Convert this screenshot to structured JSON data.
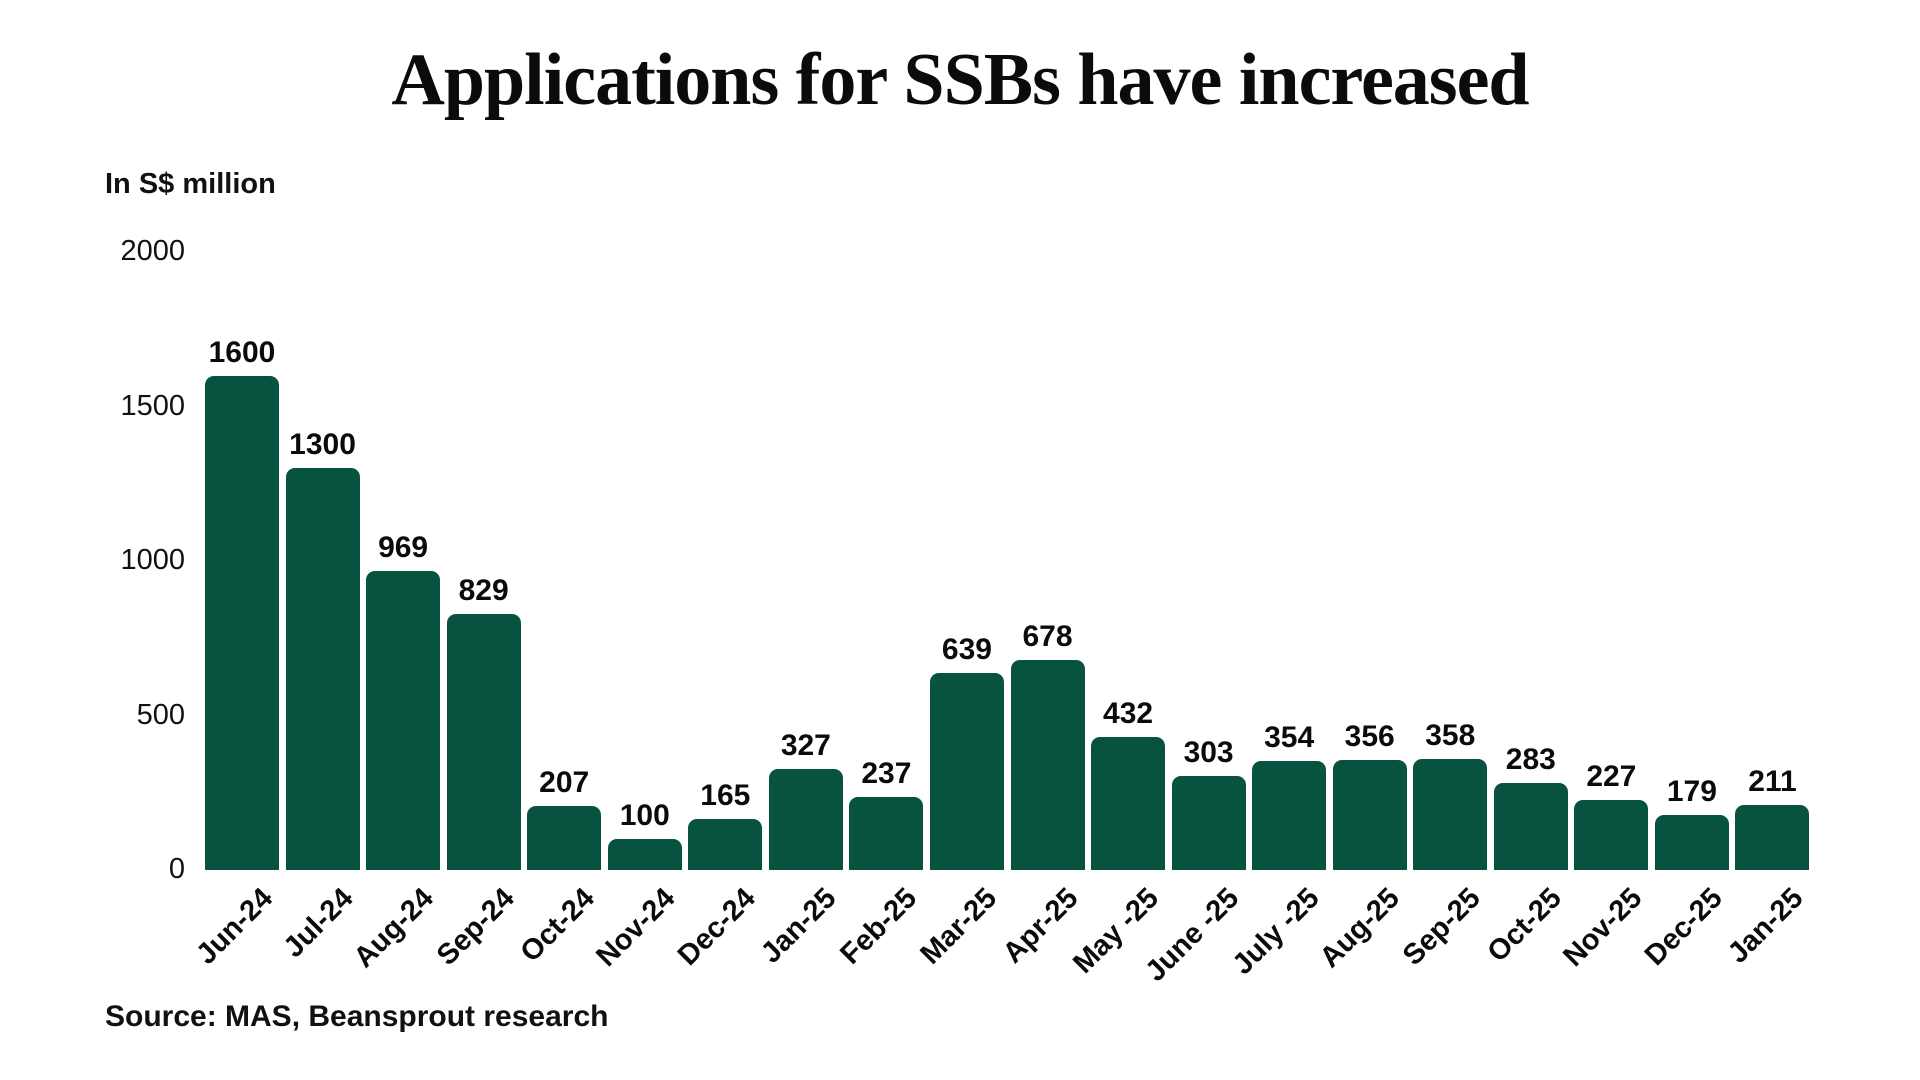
{
  "chart_data": {
    "type": "bar",
    "title": "Applications for SSBs have increased",
    "units_label": "In S$ million",
    "source": "Source: MAS, Beansprout research",
    "categories": [
      "Jun-24",
      "Jul-24",
      "Aug-24",
      "Sep-24",
      "Oct-24",
      "Nov-24",
      "Dec-24",
      "Jan-25",
      "Feb-25",
      "Mar-25",
      "Apr-25",
      "May -25",
      "June -25",
      "July -25",
      "Aug-25",
      "Sep-25",
      "Oct-25",
      "Nov-25",
      "Dec-25",
      "Jan-25"
    ],
    "values": [
      1600,
      1300,
      969,
      829,
      207,
      100,
      165,
      327,
      237,
      639,
      678,
      432,
      303,
      354,
      356,
      358,
      283,
      227,
      179,
      211
    ],
    "yticks": [
      0,
      500,
      1000,
      1500,
      2000
    ],
    "ylim": [
      0,
      2000
    ],
    "xlabel": "",
    "ylabel": "In S$ million",
    "grid": false,
    "legend": false,
    "bar_color": "#075340",
    "text_color": "#111111",
    "background_color": "#ffffff"
  }
}
